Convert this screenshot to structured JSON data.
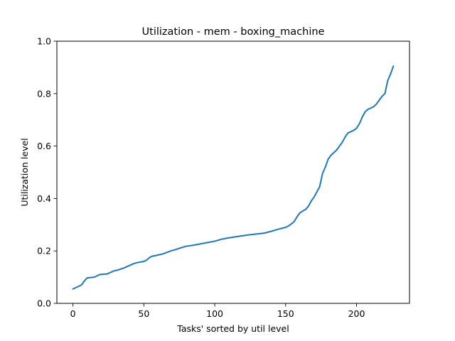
{
  "chart_data": {
    "type": "line",
    "title": "Utilization - mem - boxing_machine",
    "xlabel": "Tasks' sorted by util level",
    "ylabel": "Utilization level",
    "xlim": [
      -11.35,
      237.35
    ],
    "ylim": [
      0.0,
      1.0
    ],
    "xticks": [
      0,
      50,
      100,
      150,
      200
    ],
    "yticks": [
      0.0,
      0.2,
      0.4,
      0.6,
      0.8,
      1.0
    ],
    "xtick_labels": [
      "0",
      "50",
      "100",
      "150",
      "200"
    ],
    "ytick_labels": [
      "0.0",
      "0.2",
      "0.4",
      "0.6",
      "0.8",
      "1.0"
    ],
    "grid": false,
    "legend": "none",
    "series": [
      {
        "color": "#1f77b4",
        "x": [
          0,
          2,
          4,
          6,
          8,
          10,
          15,
          17,
          19,
          24,
          29,
          31,
          36,
          38,
          43,
          45,
          50,
          52,
          54,
          56,
          58,
          63,
          65,
          67,
          69,
          71,
          73,
          75,
          80,
          85,
          90,
          95,
          100,
          105,
          110,
          115,
          120,
          125,
          130,
          135,
          140,
          145,
          150,
          152,
          154,
          156,
          158,
          160,
          162,
          164,
          166,
          168,
          170,
          172,
          174,
          176,
          178,
          180,
          182,
          184,
          186,
          188,
          190,
          192,
          194,
          196,
          198,
          200,
          202,
          204,
          206,
          208,
          210,
          212,
          214,
          216,
          218,
          220,
          222,
          224,
          226
        ],
        "y": [
          0.055,
          0.06,
          0.065,
          0.07,
          0.085,
          0.097,
          0.1,
          0.105,
          0.11,
          0.112,
          0.124,
          0.126,
          0.135,
          0.14,
          0.152,
          0.155,
          0.16,
          0.165,
          0.175,
          0.18,
          0.182,
          0.188,
          0.192,
          0.196,
          0.2,
          0.203,
          0.206,
          0.21,
          0.218,
          0.222,
          0.227,
          0.232,
          0.237,
          0.245,
          0.25,
          0.254,
          0.258,
          0.262,
          0.265,
          0.268,
          0.275,
          0.283,
          0.29,
          0.295,
          0.303,
          0.312,
          0.33,
          0.345,
          0.352,
          0.358,
          0.37,
          0.39,
          0.405,
          0.425,
          0.445,
          0.495,
          0.52,
          0.55,
          0.565,
          0.575,
          0.585,
          0.6,
          0.615,
          0.635,
          0.65,
          0.655,
          0.66,
          0.668,
          0.685,
          0.71,
          0.73,
          0.74,
          0.745,
          0.75,
          0.76,
          0.775,
          0.79,
          0.8,
          0.85,
          0.875,
          0.905
        ]
      }
    ]
  }
}
